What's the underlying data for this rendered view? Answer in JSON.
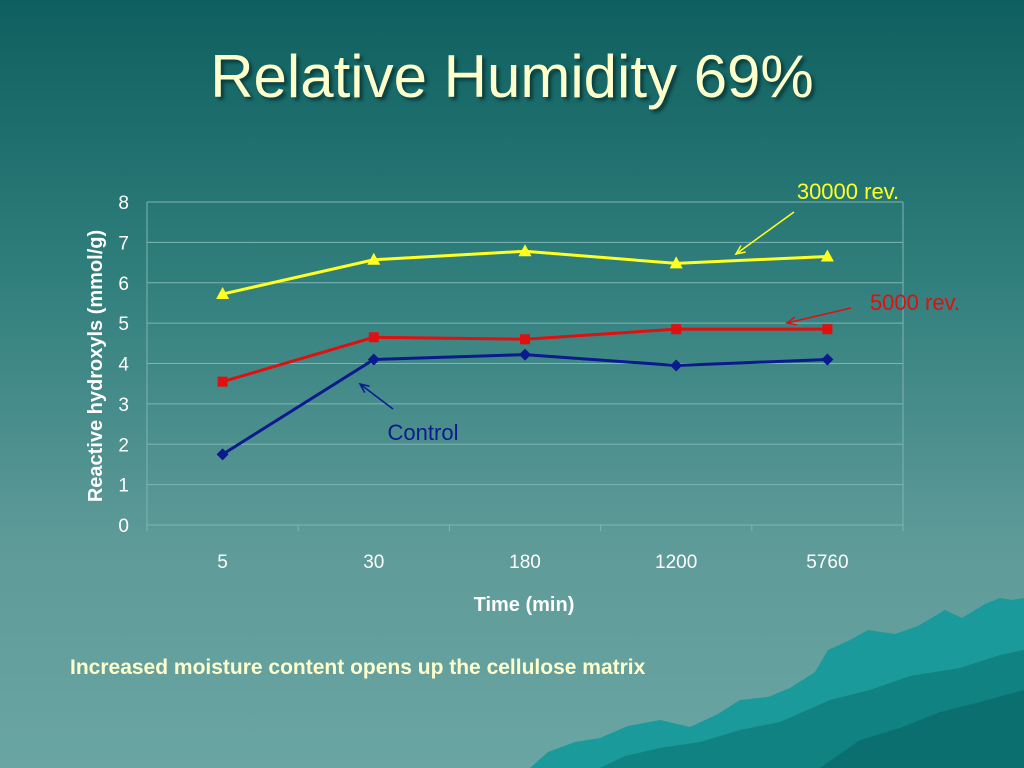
{
  "slide": {
    "title": "Relative Humidity 69%",
    "caption": "Increased moisture content opens up the cellulose matrix"
  },
  "chart_data": {
    "type": "line",
    "categories": [
      "5",
      "30",
      "180",
      "1200",
      "5760"
    ],
    "xlabel": "Time (min)",
    "ylabel": "Reactive hydroxyls (mmol/g)",
    "ylim": [
      0,
      8
    ],
    "yticks": [
      "0",
      "1",
      "2",
      "3",
      "4",
      "5",
      "6",
      "7",
      "8"
    ],
    "grid": true,
    "legend": "none",
    "series": [
      {
        "name": "Control",
        "values": [
          1.75,
          4.1,
          4.22,
          3.95,
          4.1
        ],
        "color": "#0b1a8c",
        "marker": "diamond"
      },
      {
        "name": "5000 rev.",
        "values": [
          3.55,
          4.65,
          4.6,
          4.85,
          4.85
        ],
        "color": "#e01010",
        "marker": "square"
      },
      {
        "name": "30000 rev.",
        "values": [
          5.72,
          6.57,
          6.78,
          6.48,
          6.65
        ],
        "color": "#ffff22",
        "marker": "triangle"
      }
    ],
    "annotations": [
      {
        "text": "Control",
        "series": 0,
        "color": "#0b1a8c"
      },
      {
        "text": "5000 rev.",
        "series": 1,
        "color": "#e01010"
      },
      {
        "text": "30000 rev.",
        "series": 2,
        "color": "#ffff22"
      }
    ]
  }
}
